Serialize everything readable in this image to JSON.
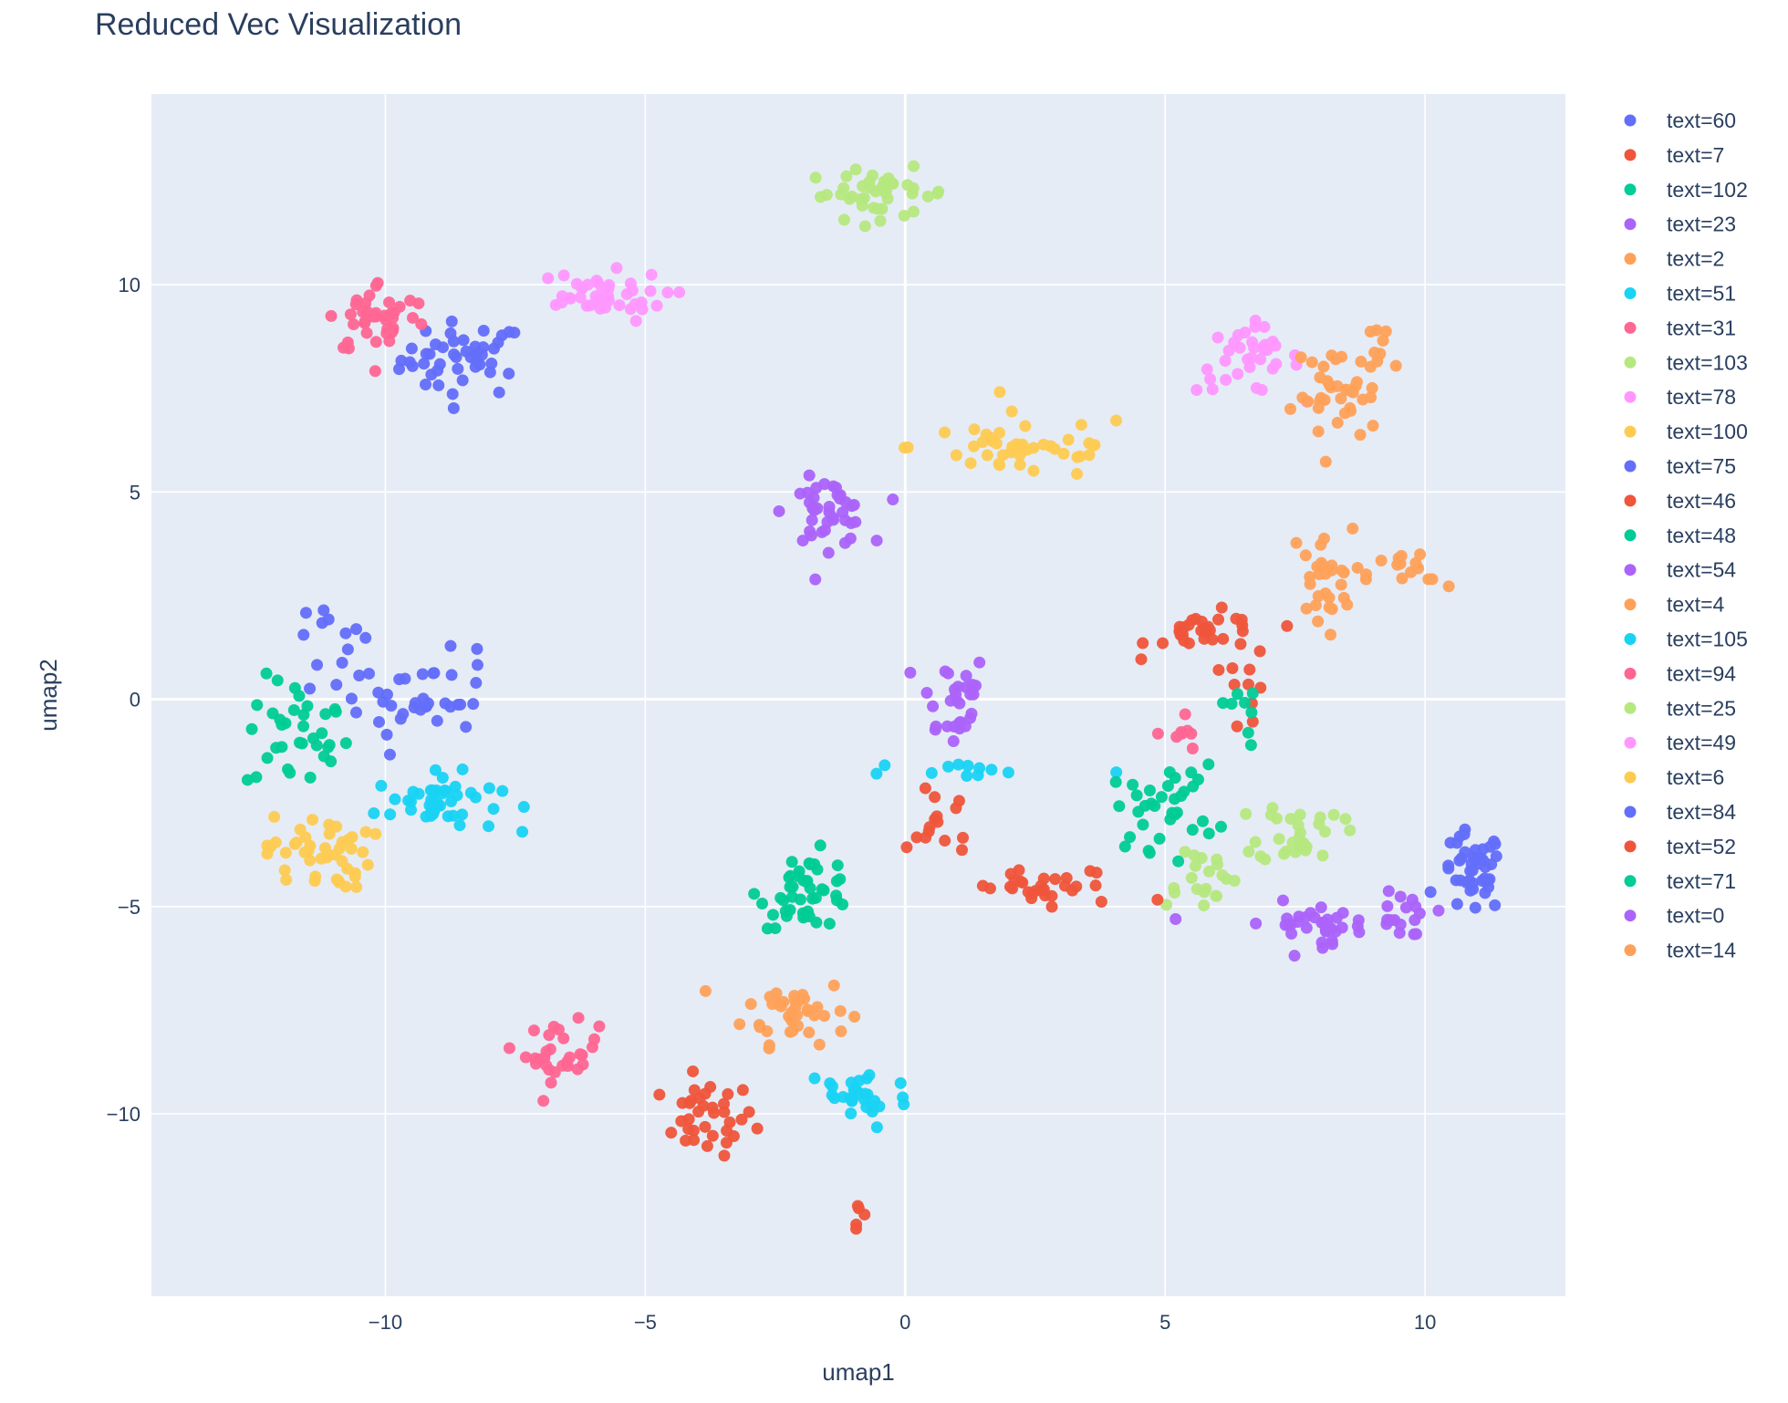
{
  "chart_data": {
    "type": "scatter",
    "title": "Reduced Vec Visualization",
    "xlabel": "umap1",
    "ylabel": "umap2",
    "xlim": [
      -14.5,
      12.7
    ],
    "ylim": [
      -14.4,
      14.6
    ],
    "xticks": [
      -10,
      -5,
      0,
      5,
      10
    ],
    "yticks": [
      -10,
      -5,
      0,
      5,
      10
    ],
    "xtick_labels": [
      "−10",
      "−5",
      "0",
      "5",
      "10"
    ],
    "ytick_labels": [
      "−10",
      "−5",
      "0",
      "5",
      "10"
    ],
    "grid": true,
    "legend_position": "right",
    "plot_bg": "#e5ecf6",
    "series": [
      {
        "name": "text=60",
        "color": "#636efa",
        "clusters": [
          {
            "c": [
              -8.5,
              8.2
            ],
            "s": [
              0.6,
              0.45
            ],
            "n": 45
          }
        ]
      },
      {
        "name": "text=7",
        "color": "#ef553b",
        "clusters": [
          {
            "c": [
              -3.8,
              -10.1
            ],
            "s": [
              0.45,
              0.45
            ],
            "n": 35
          },
          {
            "c": [
              -0.9,
              -12.4
            ],
            "s": [
              0.1,
              0.3
            ],
            "n": 5
          }
        ]
      },
      {
        "name": "text=102",
        "color": "#00cc96",
        "clusters": [
          {
            "c": [
              -11.7,
              -0.9
            ],
            "s": [
              0.5,
              0.7
            ],
            "n": 35
          }
        ]
      },
      {
        "name": "text=23",
        "color": "#ab63fa",
        "clusters": [
          {
            "c": [
              0.9,
              0.0
            ],
            "s": [
              0.35,
              0.6
            ],
            "n": 30
          }
        ]
      },
      {
        "name": "text=2",
        "color": "#ffa15a",
        "clusters": [
          {
            "c": [
              -2.1,
              -7.5
            ],
            "s": [
              0.5,
              0.4
            ],
            "n": 40
          }
        ]
      },
      {
        "name": "text=51",
        "color": "#19d3f3",
        "clusters": [
          {
            "c": [
              -9.0,
              -2.5
            ],
            "s": [
              0.6,
              0.35
            ],
            "n": 45
          }
        ]
      },
      {
        "name": "text=31",
        "color": "#ff6692",
        "clusters": [
          {
            "c": [
              -6.6,
              -8.5
            ],
            "s": [
              0.35,
              0.35
            ],
            "n": 30
          }
        ]
      },
      {
        "name": "text=103",
        "color": "#b6e880",
        "clusters": [
          {
            "c": [
              -0.5,
              12.2
            ],
            "s": [
              0.7,
              0.3
            ],
            "n": 40
          }
        ]
      },
      {
        "name": "text=78",
        "color": "#ff97ff",
        "clusters": [
          {
            "c": [
              6.6,
              8.2
            ],
            "s": [
              0.5,
              0.4
            ],
            "n": 35
          }
        ]
      },
      {
        "name": "text=100",
        "color": "#fecb52",
        "clusters": [
          {
            "c": [
              2.3,
              6.1
            ],
            "s": [
              1.1,
              0.4
            ],
            "n": 45
          }
        ]
      },
      {
        "name": "text=75",
        "color": "#636efa",
        "clusters": [
          {
            "c": [
              10.9,
              -4.2
            ],
            "s": [
              0.3,
              0.5
            ],
            "n": 45
          }
        ]
      },
      {
        "name": "text=46",
        "color": "#ef553b",
        "clusters": [
          {
            "c": [
              5.9,
              1.6
            ],
            "s": [
              0.6,
              0.25
            ],
            "n": 30
          },
          {
            "c": [
              6.6,
              0.2
            ],
            "s": [
              0.2,
              0.5
            ],
            "n": 10
          }
        ]
      },
      {
        "name": "text=48",
        "color": "#00cc96",
        "clusters": [
          {
            "c": [
              -1.9,
              -4.6
            ],
            "s": [
              0.45,
              0.45
            ],
            "n": 45
          }
        ]
      },
      {
        "name": "text=54",
        "color": "#ab63fa",
        "clusters": [
          {
            "c": [
              -1.5,
              4.5
            ],
            "s": [
              0.4,
              0.4
            ],
            "n": 40
          }
        ]
      },
      {
        "name": "text=4",
        "color": "#ffa15a",
        "clusters": [
          {
            "c": [
              8.0,
              2.9
            ],
            "s": [
              0.3,
              0.6
            ],
            "n": 30
          },
          {
            "c": [
              9.7,
              3.0
            ],
            "s": [
              0.4,
              0.3
            ],
            "n": 15
          }
        ]
      },
      {
        "name": "text=105",
        "color": "#19d3f3",
        "clusters": [
          {
            "c": [
              -0.9,
              -9.6
            ],
            "s": [
              0.5,
              0.4
            ],
            "n": 30
          },
          {
            "c": [
              1.5,
              -1.7
            ],
            "s": [
              1.2,
              0.1
            ],
            "n": 12
          }
        ]
      },
      {
        "name": "text=94",
        "color": "#ff6692",
        "clusters": [
          {
            "c": [
              -10.1,
              9.2
            ],
            "s": [
              0.5,
              0.45
            ],
            "n": 40
          },
          {
            "c": [
              5.3,
              -0.9
            ],
            "s": [
              0.15,
              0.3
            ],
            "n": 8
          }
        ]
      },
      {
        "name": "text=25",
        "color": "#b6e880",
        "clusters": [
          {
            "c": [
              7.6,
              -3.2
            ],
            "s": [
              0.4,
              0.4
            ],
            "n": 30
          },
          {
            "c": [
              5.6,
              -4.2
            ],
            "s": [
              0.4,
              0.4
            ],
            "n": 20
          }
        ]
      },
      {
        "name": "text=49",
        "color": "#ff97ff",
        "clusters": [
          {
            "c": [
              -6.0,
              9.7
            ],
            "s": [
              0.7,
              0.3
            ],
            "n": 40
          }
        ]
      },
      {
        "name": "text=6",
        "color": "#fecb52",
        "clusters": [
          {
            "c": [
              -11.3,
              -3.7
            ],
            "s": [
              0.5,
              0.45
            ],
            "n": 45
          }
        ]
      },
      {
        "name": "text=84",
        "color": "#636efa",
        "clusters": [
          {
            "c": [
              -9.5,
              0.0
            ],
            "s": [
              0.9,
              0.6
            ],
            "n": 40
          },
          {
            "c": [
              -10.9,
              1.5
            ],
            "s": [
              0.3,
              0.4
            ],
            "n": 10
          }
        ]
      },
      {
        "name": "text=52",
        "color": "#ef553b",
        "clusters": [
          {
            "c": [
              2.8,
              -4.6
            ],
            "s": [
              0.9,
              0.25
            ],
            "n": 30
          },
          {
            "c": [
              0.7,
              -2.8
            ],
            "s": [
              0.3,
              0.6
            ],
            "n": 15
          }
        ]
      },
      {
        "name": "text=71",
        "color": "#00cc96",
        "clusters": [
          {
            "c": [
              5.0,
              -2.6
            ],
            "s": [
              0.5,
              0.5
            ],
            "n": 35
          },
          {
            "c": [
              6.5,
              -0.3
            ],
            "s": [
              0.2,
              0.5
            ],
            "n": 8
          }
        ]
      },
      {
        "name": "text=0",
        "color": "#ab63fa",
        "clusters": [
          {
            "c": [
              7.9,
              -5.4
            ],
            "s": [
              0.9,
              0.25
            ],
            "n": 40
          },
          {
            "c": [
              9.7,
              -5.3
            ],
            "s": [
              0.25,
              0.3
            ],
            "n": 12
          }
        ]
      },
      {
        "name": "text=14",
        "color": "#ffa15a",
        "clusters": [
          {
            "c": [
              8.3,
              7.3
            ],
            "s": [
              0.4,
              0.6
            ],
            "n": 35
          },
          {
            "c": [
              9.1,
              8.5
            ],
            "s": [
              0.3,
              0.3
            ],
            "n": 10
          }
        ]
      }
    ]
  }
}
